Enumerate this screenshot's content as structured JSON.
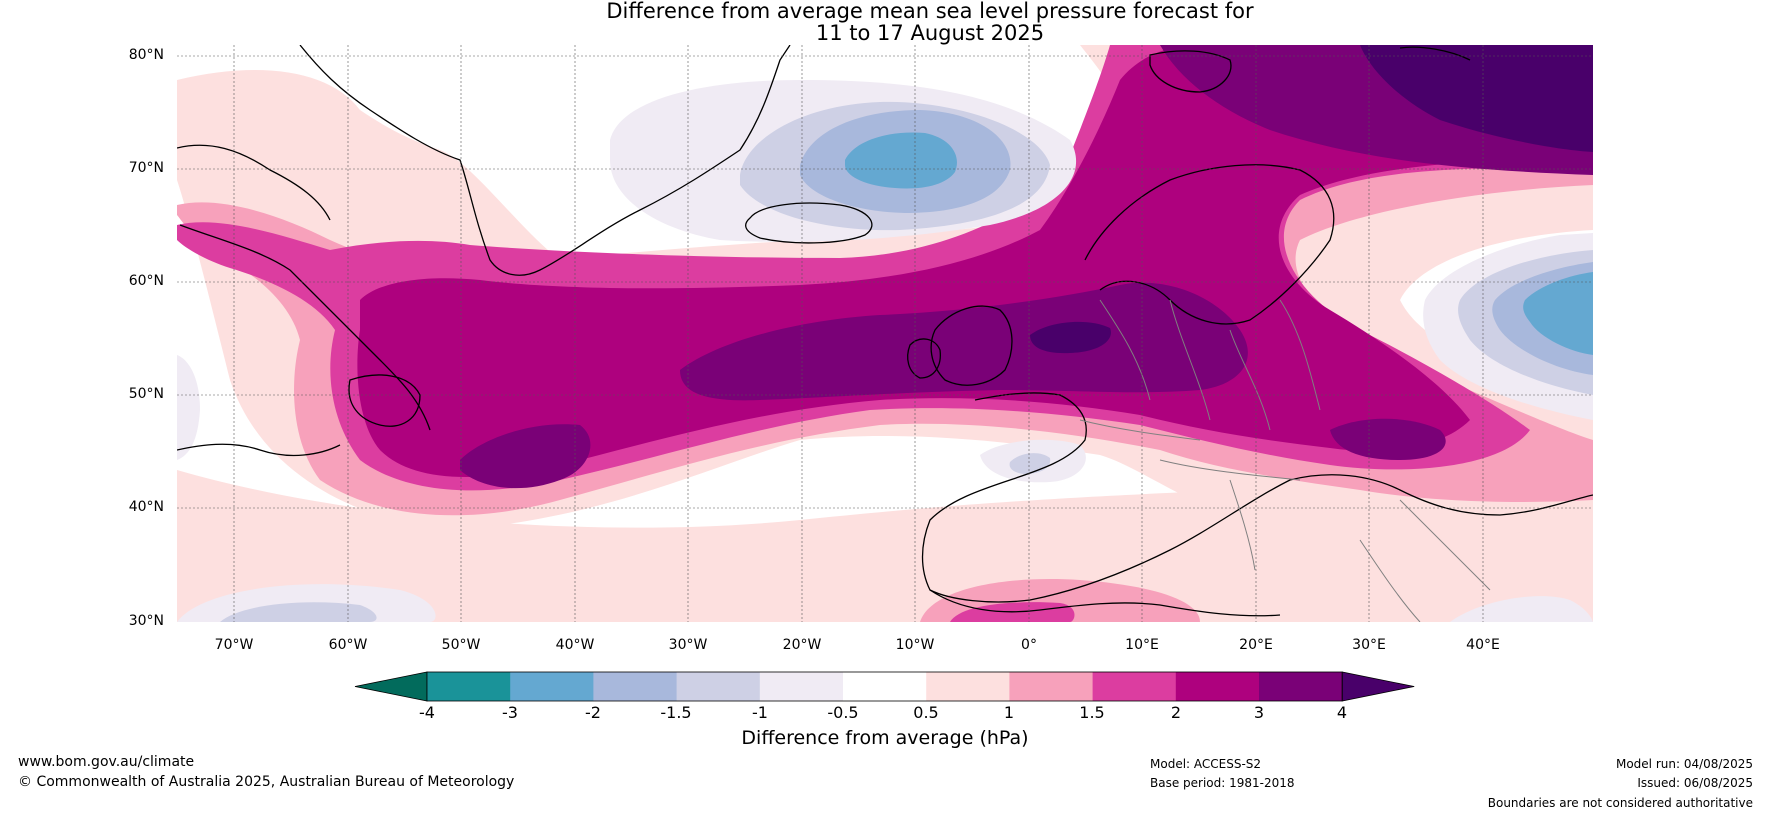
{
  "title": {
    "line1": "Difference from average mean sea level pressure forecast for",
    "line2": "11 to 17 August 2025"
  },
  "map": {
    "lat_labels": [
      "80°N",
      "70°N",
      "60°N",
      "50°N",
      "40°N",
      "30°N"
    ],
    "lon_labels": [
      "70°W",
      "60°W",
      "50°W",
      "40°W",
      "30°W",
      "20°W",
      "10°W",
      "0°",
      "10°E",
      "20°E",
      "30°E",
      "40°E"
    ],
    "grid_lines": true,
    "colors": {
      "coast": "#000000",
      "borders": "#808080",
      "grid": "#555555"
    }
  },
  "colorbar": {
    "ticks": [
      "-4",
      "-3",
      "-2",
      "-1.5",
      "-1",
      "-0.5",
      "0.5",
      "1",
      "1.5",
      "2",
      "3",
      "4"
    ],
    "colors": [
      "#026b5c",
      "#1a9399",
      "#64a8d1",
      "#a8b8dc",
      "#ced0e5",
      "#f0ebf4",
      "#ffffff",
      "#fde0df",
      "#f7a1bb",
      "#dc3da0",
      "#ae017e",
      "#7a0177",
      "#49006a"
    ],
    "title": "Difference from average (hPa)"
  },
  "footer": {
    "website": "www.bom.gov.au/climate",
    "copyright": "© Commonwealth of Australia 2025, Australian Bureau of Meteorology",
    "model": "Model: ACCESS-S2",
    "base_period": "Base period: 1981-2018",
    "model_run": "Model run: 04/08/2025",
    "issued": "Issued: 06/08/2025",
    "boundaries": "Boundaries are not considered authoritative"
  }
}
